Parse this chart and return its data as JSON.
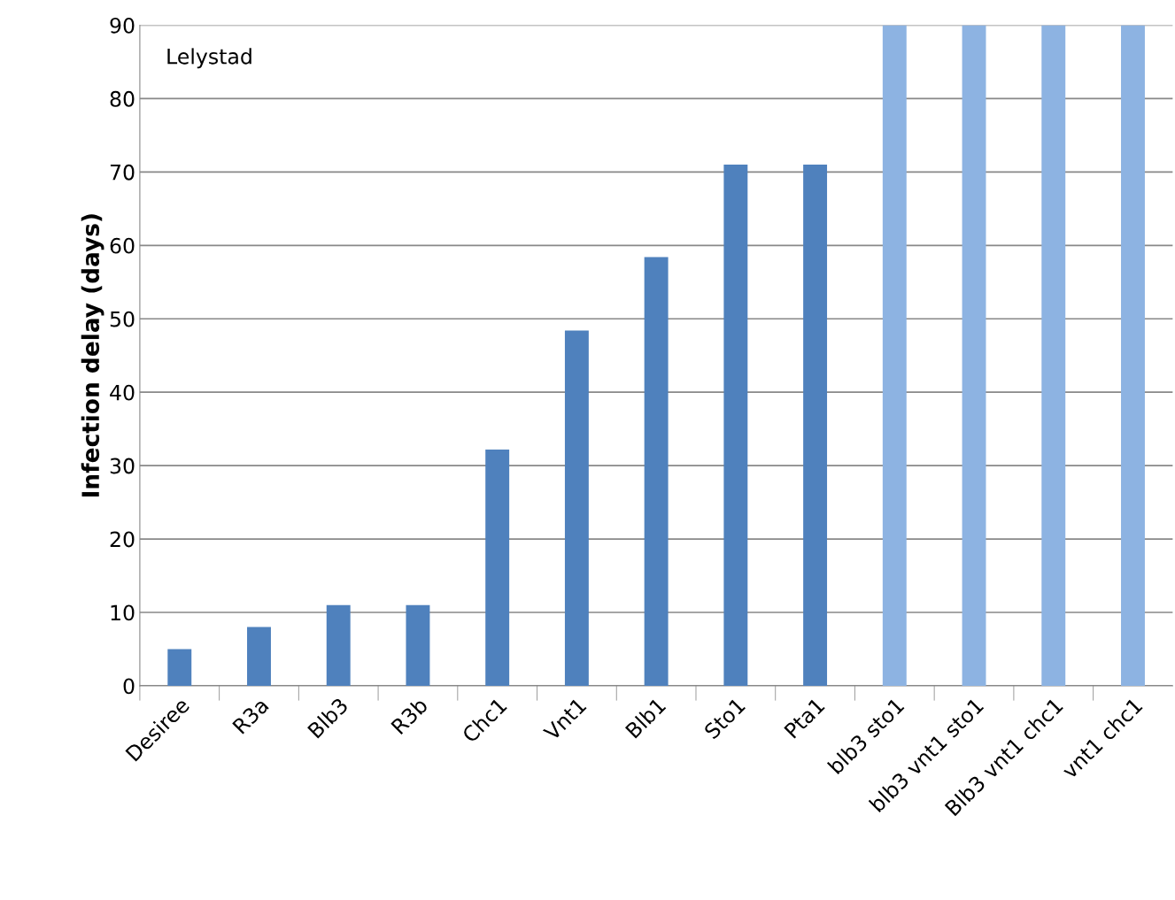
{
  "chart_data": {
    "type": "bar",
    "ylabel": "Infection delay (days)",
    "categories": [
      "Desiree",
      "R3a",
      "Blb3",
      "R3b",
      "Chc1",
      "Vnt1",
      "Blb1",
      "Sto1",
      "Pta1",
      "blb3 sto1",
      "blb3 vnt1 sto1",
      "Blb3 vnt1 chc1",
      "vnt1 chc1"
    ],
    "values": [
      5,
      8,
      11,
      11,
      32.2,
      48.4,
      58.4,
      71,
      71,
      90,
      90,
      90,
      90
    ],
    "colors": [
      "#4f81bd",
      "#4f81bd",
      "#4f81bd",
      "#4f81bd",
      "#4f81bd",
      "#4f81bd",
      "#4f81bd",
      "#4f81bd",
      "#4f81bd",
      "#8db3e2",
      "#8db3e2",
      "#8db3e2",
      "#8db3e2"
    ],
    "ylim": [
      0,
      90
    ],
    "yticks": [
      0,
      10,
      20,
      30,
      40,
      50,
      60,
      70,
      80,
      90
    ],
    "grid": "y",
    "annotations": [
      "Lelystad"
    ]
  }
}
